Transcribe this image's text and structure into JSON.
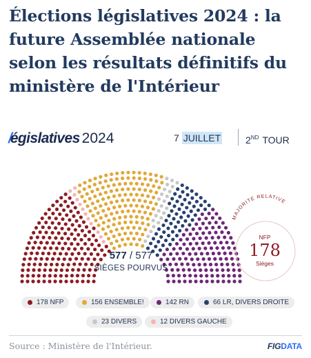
{
  "title": "Élections législatives 2024 : la future Assemblée nationale selon les résultats définitifs du ministère de l'Intérieur",
  "brand": {
    "slash": "/",
    "word": "égislatives",
    "year": "2024"
  },
  "date": {
    "day": "7",
    "month": "JUILLET"
  },
  "round": {
    "num": "2",
    "sup": "ND",
    "label": "TOUR"
  },
  "seats_line": {
    "filled": "577",
    "sep": " / ",
    "total": "577"
  },
  "seats_label": "SIÈGES POURVUS",
  "callout": {
    "arc_label": "MAJORITÉ RELATIVE",
    "party": "NFP",
    "value": "178",
    "unit": "Sièges"
  },
  "source": "Source : Ministère de l'Intérieur.",
  "logo": {
    "fig": "FIG",
    "data": "DATA"
  },
  "colors": {
    "nfp": "#8c1c23",
    "ensemble": "#e0a83a",
    "rn": "#6d2777",
    "lr": "#27406f",
    "divers": "#c7c7c7",
    "divers_gauche": "#f2b6b4"
  },
  "chart_data": {
    "type": "parliament",
    "total": 577,
    "series": [
      {
        "name": "NFP",
        "value": 178,
        "color": "#8c1c23"
      },
      {
        "name": "DIVERS GAUCHE",
        "value": 12,
        "color": "#f2b6b4"
      },
      {
        "name": "ENSEMBLE!",
        "value": 156,
        "color": "#e0a83a"
      },
      {
        "name": "DIVERS",
        "value": 23,
        "color": "#c7c7c7"
      },
      {
        "name": "LR, DIVERS DROITE",
        "value": 66,
        "color": "#27406f"
      },
      {
        "name": "RN",
        "value": 142,
        "color": "#6d2777"
      }
    ],
    "legend": [
      {
        "value": "178",
        "name": "NFP",
        "color": "#8c1c23"
      },
      {
        "value": "156",
        "name": "ENSEMBLE!",
        "color": "#e0a83a"
      },
      {
        "value": "142",
        "name": "RN",
        "color": "#6d2777"
      },
      {
        "value": "66",
        "name": "LR, DIVERS DROITE",
        "color": "#27406f"
      },
      {
        "value": "23",
        "name": "DIVERS",
        "color": "#c7c7c7"
      },
      {
        "value": "12",
        "name": "DIVERS GAUCHE",
        "color": "#f2b6b4"
      }
    ]
  }
}
